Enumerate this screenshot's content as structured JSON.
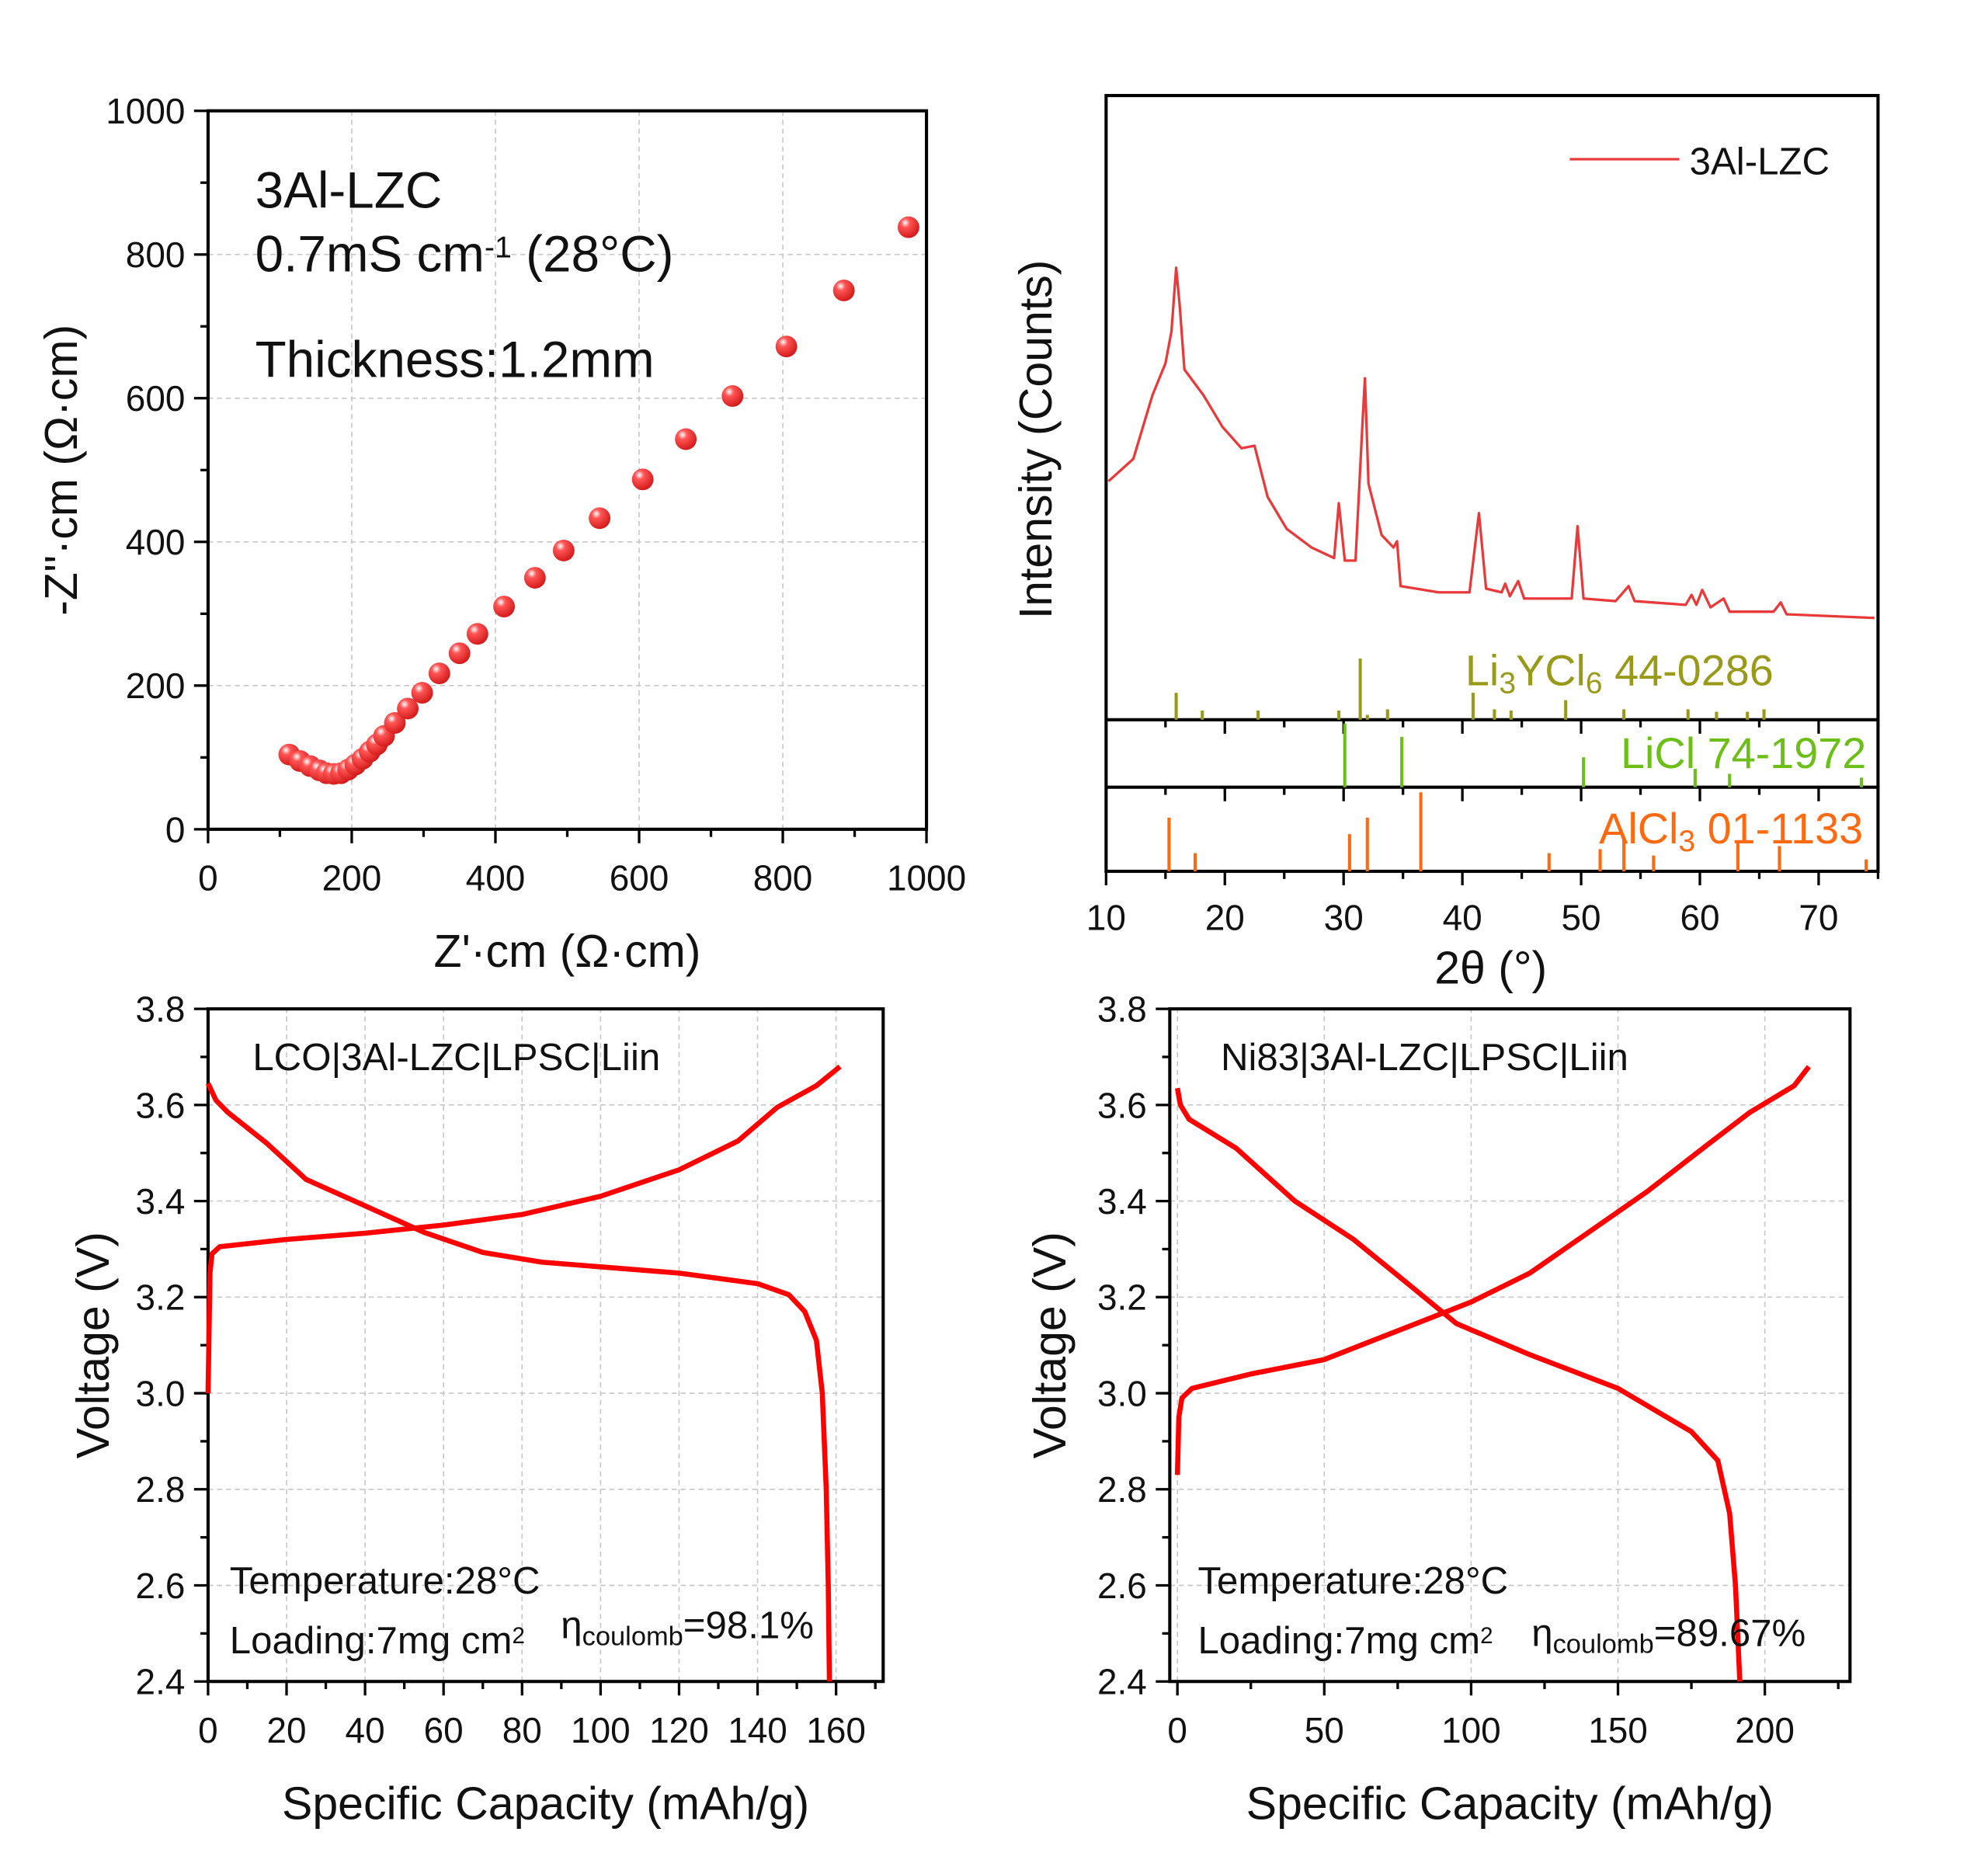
{
  "colors": {
    "marker": "#ee2b2b",
    "xrd": "#e83a3a",
    "curve": "#ff0000",
    "lyc": "#9a9a1a",
    "licl": "#6cbf16",
    "alcl3": "#ff6a10",
    "grid": "#c8c8c8"
  },
  "chart_data": [
    {
      "type": "scatter",
      "xlabel": "Z'·cm (Ω·cm)",
      "ylabel": "-Z''·cm (Ω·cm)",
      "xlim": [
        0,
        1000
      ],
      "ylim": [
        0,
        1000
      ],
      "xticks": [
        "0",
        "200",
        "400",
        "600",
        "800",
        "1000"
      ],
      "yticks": [
        "0",
        "200",
        "400",
        "600",
        "800",
        "1000"
      ],
      "grid": true,
      "annotations": {
        "sample": "3Al-LZC",
        "cond": [
          {
            "t": "0.7mS cm"
          },
          {
            "t": "-1",
            "s": "sup"
          },
          {
            "t": "  (28°C)"
          }
        ],
        "thickness": "Thickness:1.2mm"
      },
      "points": [
        [
          113,
          104
        ],
        [
          128,
          95
        ],
        [
          142,
          88
        ],
        [
          155,
          82
        ],
        [
          165,
          78
        ],
        [
          175,
          77
        ],
        [
          185,
          78
        ],
        [
          195,
          83
        ],
        [
          205,
          90
        ],
        [
          215,
          98
        ],
        [
          225,
          108
        ],
        [
          235,
          118
        ],
        [
          245,
          130
        ],
        [
          260,
          148
        ],
        [
          278,
          168
        ],
        [
          298,
          190
        ],
        [
          322,
          217
        ],
        [
          350,
          245
        ],
        [
          375,
          272
        ],
        [
          412,
          310
        ],
        [
          455,
          350
        ],
        [
          495,
          388
        ],
        [
          545,
          433
        ],
        [
          605,
          487
        ],
        [
          665,
          543
        ],
        [
          730,
          603
        ],
        [
          805,
          672
        ],
        [
          885,
          750
        ],
        [
          975,
          838
        ]
      ]
    },
    {
      "type": "line",
      "xlabel": "2θ (°)",
      "ylabel": "Intensity (Counts)",
      "xlim": [
        10,
        75
      ],
      "xticks": [
        "10",
        "20",
        "30",
        "40",
        "50",
        "60",
        "70"
      ],
      "grid": false,
      "legend": {
        "position": "top-right",
        "entries": [
          "3Al-LZC"
        ]
      },
      "series": [
        {
          "name": "3Al-LZC",
          "points": [
            [
              10.2,
              38.2
            ],
            [
              12.3,
              41.8
            ],
            [
              13.9,
              52.0
            ],
            [
              15.0,
              57.1
            ],
            [
              15.5,
              62.2
            ],
            [
              15.9,
              72.4
            ],
            [
              16.2,
              66.3
            ],
            [
              16.6,
              56.1
            ],
            [
              18.2,
              52.0
            ],
            [
              19.8,
              46.9
            ],
            [
              21.4,
              43.5
            ],
            [
              22.5,
              43.9
            ],
            [
              23.6,
              35.7
            ],
            [
              25.2,
              30.6
            ],
            [
              27.3,
              27.6
            ],
            [
              29.2,
              25.9
            ],
            [
              29.6,
              34.7
            ],
            [
              30.1,
              25.5
            ],
            [
              31.0,
              25.5
            ],
            [
              31.6,
              48.0
            ],
            [
              31.8,
              54.7
            ],
            [
              32.1,
              37.8
            ],
            [
              33.2,
              29.6
            ],
            [
              34.2,
              27.6
            ],
            [
              34.5,
              28.6
            ],
            [
              34.8,
              21.4
            ],
            [
              38.0,
              20.4
            ],
            [
              40.6,
              20.4
            ],
            [
              41.4,
              33.1
            ],
            [
              42.0,
              21.0
            ],
            [
              43.3,
              20.4
            ],
            [
              43.6,
              21.8
            ],
            [
              44.0,
              19.8
            ],
            [
              44.7,
              22.2
            ],
            [
              45.2,
              19.4
            ],
            [
              49.2,
              19.4
            ],
            [
              49.7,
              31.0
            ],
            [
              50.2,
              19.4
            ],
            [
              52.9,
              19.0
            ],
            [
              54.0,
              21.4
            ],
            [
              54.5,
              19.0
            ],
            [
              58.8,
              18.4
            ],
            [
              59.3,
              20.0
            ],
            [
              59.7,
              18.4
            ],
            [
              60.2,
              20.8
            ],
            [
              60.9,
              18.0
            ],
            [
              62.0,
              19.4
            ],
            [
              62.5,
              17.3
            ],
            [
              66.2,
              17.3
            ],
            [
              66.8,
              18.8
            ],
            [
              67.3,
              16.9
            ],
            [
              74.7,
              16.3
            ]
          ]
        }
      ],
      "references": [
        {
          "color_key": "lyc",
          "label": [
            {
              "t": "Li"
            },
            {
              "t": "3",
              "s": "sub"
            },
            {
              "t": "YCl"
            },
            {
              "t": "6",
              "s": "sub"
            },
            {
              "t": " 44-"
            }
          ],
          "label2": "0286",
          "sticks": [
            [
              15.9,
              44
            ],
            [
              18.1,
              15
            ],
            [
              22.8,
              15
            ],
            [
              29.6,
              15
            ],
            [
              31.4,
              100
            ],
            [
              32.0,
              8
            ],
            [
              33.7,
              17
            ],
            [
              40.9,
              44
            ],
            [
              42.7,
              17
            ],
            [
              44.1,
              15
            ],
            [
              48.7,
              32
            ],
            [
              53.6,
              17
            ],
            [
              59.0,
              17
            ],
            [
              61.4,
              13
            ],
            [
              64.0,
              13
            ],
            [
              65.4,
              17
            ]
          ]
        },
        {
          "color_key": "licl",
          "label": [
            {
              "t": "LiCl  74-1972"
            }
          ],
          "sticks": [
            [
              30.1,
              100
            ],
            [
              34.9,
              79
            ],
            [
              50.2,
              47
            ],
            [
              59.6,
              29
            ],
            [
              62.5,
              21
            ],
            [
              73.6,
              15
            ]
          ]
        },
        {
          "color_key": "alcl3",
          "label": [
            {
              "t": "AlCl"
            },
            {
              "t": "3",
              "s": "sub"
            },
            {
              "t": "  01-1133"
            }
          ],
          "sticks": [
            [
              15.3,
              68
            ],
            [
              17.5,
              23
            ],
            [
              30.5,
              47
            ],
            [
              32.0,
              68
            ],
            [
              36.5,
              100
            ],
            [
              47.3,
              23
            ],
            [
              51.6,
              28
            ],
            [
              53.6,
              40
            ],
            [
              56.1,
              20
            ],
            [
              63.2,
              39
            ],
            [
              66.7,
              32
            ],
            [
              74.0,
              15
            ]
          ]
        }
      ]
    },
    {
      "type": "line",
      "xlabel": "Specific Capacity (mAh/g)",
      "ylabel": "Voltage (V)",
      "xlim": [
        0,
        172
      ],
      "ylim": [
        2.4,
        3.8
      ],
      "xticks": [
        "0",
        "20",
        "40",
        "60",
        "80",
        "100",
        "120",
        "140",
        "160"
      ],
      "yticks": [
        "2.4",
        "2.6",
        "2.8",
        "3.0",
        "3.2",
        "3.4",
        "3.6",
        "3.8"
      ],
      "grid": true,
      "annotations": {
        "cell": "LCO|3Al-LZC|LPSC|Liin",
        "temp": "Temperature:28°C",
        "loading": [
          {
            "t": "Loading:7mg cm"
          },
          {
            "t": "2",
            "s": "sup"
          }
        ],
        "eff": [
          {
            "t": "η"
          },
          {
            "t": "coulomb",
            "s": "sub"
          },
          {
            "t": "=98.1%"
          }
        ]
      },
      "series": [
        {
          "points": [
            [
              0,
              3.0
            ],
            [
              0.5,
              3.25
            ],
            [
              1,
              3.29
            ],
            [
              3,
              3.305
            ],
            [
              20,
              3.32
            ],
            [
              40,
              3.333
            ],
            [
              60,
              3.35
            ],
            [
              80,
              3.372
            ],
            [
              100,
              3.41
            ],
            [
              120,
              3.465
            ],
            [
              135,
              3.525
            ],
            [
              145,
              3.595
            ],
            [
              155,
              3.64
            ],
            [
              161,
              3.68
            ]
          ]
        },
        {
          "points": [
            [
              0,
              3.645
            ],
            [
              2,
              3.61
            ],
            [
              5,
              3.585
            ],
            [
              15,
              3.52
            ],
            [
              25,
              3.445
            ],
            [
              40,
              3.39
            ],
            [
              55,
              3.335
            ],
            [
              70,
              3.293
            ],
            [
              85,
              3.273
            ],
            [
              100,
              3.263
            ],
            [
              120,
              3.25
            ],
            [
              140,
              3.228
            ],
            [
              148,
              3.205
            ],
            [
              152,
              3.17
            ],
            [
              155,
              3.11
            ],
            [
              156.5,
              3.0
            ],
            [
              157.5,
              2.8
            ],
            [
              158,
              2.6
            ],
            [
              158.3,
              2.4
            ]
          ]
        }
      ]
    },
    {
      "type": "line",
      "xlabel": "Specific Capacity (mAh/g)",
      "ylabel": "Voltage (V)",
      "xlim": [
        -2.6,
        229
      ],
      "ylim": [
        2.4,
        3.8
      ],
      "xticks": [
        "0",
        "50",
        "100",
        "150",
        "200"
      ],
      "yticks": [
        "2.4",
        "2.6",
        "2.8",
        "3.0",
        "3.2",
        "3.4",
        "3.6",
        "3.8"
      ],
      "grid": true,
      "annotations": {
        "cell": "Ni83|3Al-LZC|LPSC|Liin",
        "temp": "Temperature:28°C",
        "loading": [
          {
            "t": "Loading:7mg cm"
          },
          {
            "t": "2",
            "s": "sup"
          }
        ],
        "eff": [
          {
            "t": "η"
          },
          {
            "t": "coulomb",
            "s": "sub"
          },
          {
            "t": "=89.67%"
          }
        ]
      },
      "series": [
        {
          "points": [
            [
              0,
              2.83
            ],
            [
              0.5,
              2.95
            ],
            [
              1.5,
              2.99
            ],
            [
              5,
              3.01
            ],
            [
              25,
              3.04
            ],
            [
              50,
              3.07
            ],
            [
              75,
              3.13
            ],
            [
              100,
              3.19
            ],
            [
              120,
              3.25
            ],
            [
              140,
              3.335
            ],
            [
              160,
              3.42
            ],
            [
              180,
              3.515
            ],
            [
              195,
              3.585
            ],
            [
              210,
              3.64
            ],
            [
              215,
              3.68
            ]
          ]
        },
        {
          "points": [
            [
              0,
              3.635
            ],
            [
              1,
              3.6
            ],
            [
              4,
              3.57
            ],
            [
              20,
              3.51
            ],
            [
              40,
              3.4
            ],
            [
              60,
              3.32
            ],
            [
              80,
              3.22
            ],
            [
              95,
              3.145
            ],
            [
              120,
              3.08
            ],
            [
              150,
              3.01
            ],
            [
              175,
              2.92
            ],
            [
              184,
              2.86
            ],
            [
              188,
              2.75
            ],
            [
              190,
              2.6
            ],
            [
              191.5,
              2.4
            ]
          ]
        }
      ]
    }
  ]
}
